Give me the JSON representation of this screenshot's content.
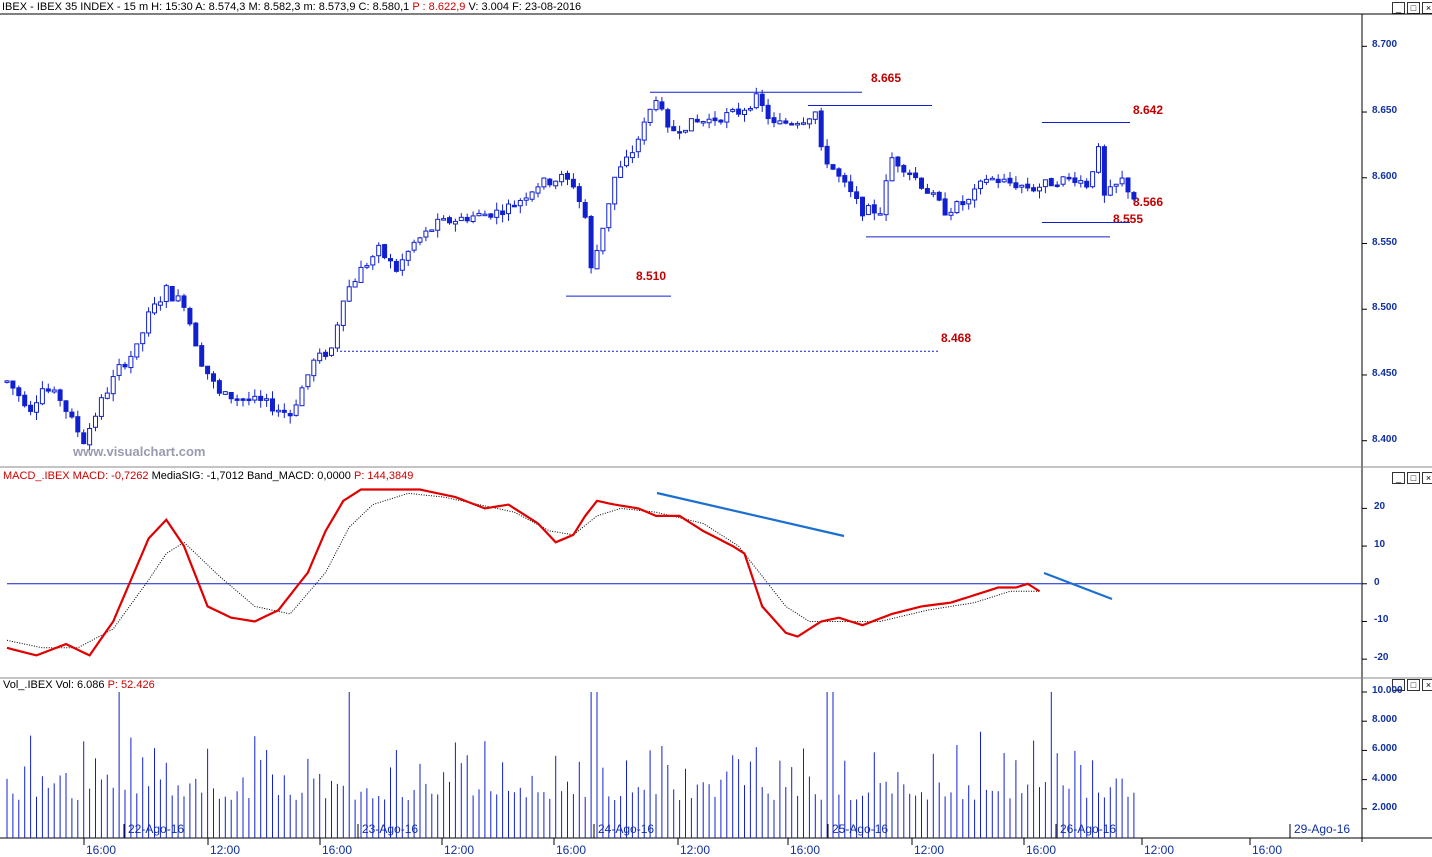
{
  "colors": {
    "price": "#1020d0",
    "macd": "#e00000",
    "signal": "#000000",
    "level": "#c00000",
    "trend": "#1a6fd0",
    "axis": "#1030a0"
  },
  "header": {
    "symbol": "IBEX - IBEX 35 INDEX - 15 m",
    "H": "H: 15:30",
    "A": "A: 8.574,3",
    "M": "M: 8.582,3",
    "m": "m: 8.573,9",
    "C": "C: 8.580,1",
    "P": "P : 8.622,9",
    "V": "V: 3.004",
    "F": "F: 23-08-2016"
  },
  "watermark": "www.visualchart.com",
  "macd_header": {
    "name": "MACD_.IBEX MACD: -0,7262",
    "mediasig": "MediaSIG: -1,7012",
    "band": "Band_MACD: 0,0000",
    "p": "P: 144,3849"
  },
  "vol_header": {
    "name": "Vol_.IBEX Vol: 6.086",
    "p": "P: 52.426"
  },
  "levels": {
    "l8665": "8.665",
    "l8642": "8.642",
    "l8566": "8.566",
    "l8555": "8.555",
    "l8510": "8.510",
    "l8468": "8.468"
  },
  "buttons": {
    "minimize": "_",
    "maximize": "□",
    "close": "×"
  },
  "chart_data": {
    "type": "candlestick",
    "price_yticks": [
      "8.700",
      "8.650",
      "8.600",
      "8.550",
      "8.500",
      "8.450",
      "8.400"
    ],
    "macd_yticks": [
      "20",
      "10",
      "0",
      "-10",
      "-20"
    ],
    "vol_yticks": [
      "10.000",
      "8.000",
      "6.000",
      "4.000",
      "2.000"
    ],
    "time_ticks": [
      "16:00",
      "12:00",
      "16:00",
      "12:00",
      "16:00",
      "12:00",
      "16:00",
      "12:00",
      "16:00",
      "12:00",
      "16:00"
    ],
    "date_ticks": [
      "22-Ago-16",
      "23-Ago-16",
      "24-Ago-16",
      "25-Ago-16",
      "26-Ago-16",
      "29-Ago-16"
    ],
    "price_range": [
      8.38,
      8.72
    ],
    "price_anchors": [
      [
        0,
        8.445
      ],
      [
        4,
        8.425
      ],
      [
        6,
        8.44
      ],
      [
        9,
        8.432
      ],
      [
        11,
        8.415
      ],
      [
        13,
        8.4
      ],
      [
        16,
        8.43
      ],
      [
        19,
        8.455
      ],
      [
        22,
        8.47
      ],
      [
        24,
        8.495
      ],
      [
        27,
        8.515
      ],
      [
        28,
        8.51
      ],
      [
        30,
        8.505
      ],
      [
        33,
        8.46
      ],
      [
        36,
        8.435
      ],
      [
        40,
        8.432
      ],
      [
        44,
        8.428
      ],
      [
        48,
        8.42
      ],
      [
        52,
        8.46
      ],
      [
        55,
        8.47
      ],
      [
        57,
        8.51
      ],
      [
        60,
        8.53
      ],
      [
        63,
        8.545
      ],
      [
        66,
        8.53
      ],
      [
        69,
        8.55
      ],
      [
        73,
        8.565
      ],
      [
        78,
        8.57
      ],
      [
        83,
        8.574
      ],
      [
        86,
        8.58
      ],
      [
        90,
        8.595
      ],
      [
        94,
        8.6
      ],
      [
        96,
        8.595
      ],
      [
        98,
        8.57
      ],
      [
        99,
        8.53
      ],
      [
        100,
        8.545
      ],
      [
        103,
        8.6
      ],
      [
        106,
        8.62
      ],
      [
        108,
        8.64
      ],
      [
        110,
        8.662
      ],
      [
        112,
        8.635
      ],
      [
        115,
        8.64
      ],
      [
        120,
        8.645
      ],
      [
        124,
        8.65
      ],
      [
        127,
        8.66
      ],
      [
        130,
        8.64
      ],
      [
        135,
        8.645
      ],
      [
        137,
        8.65
      ],
      [
        138,
        8.62
      ],
      [
        141,
        8.6
      ],
      [
        145,
        8.575
      ],
      [
        148,
        8.575
      ],
      [
        150,
        8.615
      ],
      [
        153,
        8.605
      ],
      [
        156,
        8.59
      ],
      [
        159,
        8.575
      ],
      [
        163,
        8.582
      ],
      [
        166,
        8.6
      ],
      [
        170,
        8.596
      ],
      [
        174,
        8.592
      ],
      [
        178,
        8.598
      ],
      [
        181,
        8.6
      ],
      [
        183,
        8.595
      ],
      [
        185,
        8.62
      ],
      [
        186,
        8.585
      ],
      [
        189,
        8.598
      ],
      [
        191,
        8.585
      ]
    ],
    "macd_anchors": [
      [
        0,
        -17
      ],
      [
        5,
        -19
      ],
      [
        10,
        -16
      ],
      [
        14,
        -19
      ],
      [
        18,
        -10
      ],
      [
        21,
        1
      ],
      [
        24,
        12
      ],
      [
        27,
        17
      ],
      [
        30,
        10
      ],
      [
        34,
        -6
      ],
      [
        38,
        -9
      ],
      [
        42,
        -10
      ],
      [
        46,
        -7
      ],
      [
        49,
        -1
      ],
      [
        51,
        3
      ],
      [
        54,
        14
      ],
      [
        57,
        22
      ],
      [
        60,
        25
      ],
      [
        66,
        25
      ],
      [
        70,
        25
      ],
      [
        76,
        23
      ],
      [
        81,
        20
      ],
      [
        85,
        21
      ],
      [
        90,
        16
      ],
      [
        93,
        11
      ],
      [
        96,
        13
      ],
      [
        98,
        18
      ],
      [
        100,
        22
      ],
      [
        103,
        21
      ],
      [
        107,
        20
      ],
      [
        110,
        18
      ],
      [
        114,
        18
      ],
      [
        118,
        14
      ],
      [
        123,
        10
      ],
      [
        125,
        8
      ],
      [
        128,
        -6
      ],
      [
        132,
        -13
      ],
      [
        134,
        -14
      ],
      [
        138,
        -10
      ],
      [
        141,
        -9
      ],
      [
        145,
        -11
      ],
      [
        150,
        -8
      ],
      [
        155,
        -6
      ],
      [
        160,
        -5
      ],
      [
        164,
        -3
      ],
      [
        168,
        -1
      ],
      [
        171,
        -1
      ],
      [
        173,
        0
      ],
      [
        175,
        -2
      ]
    ],
    "signal_anchors": [
      [
        0,
        -15
      ],
      [
        6,
        -17
      ],
      [
        12,
        -17
      ],
      [
        18,
        -12
      ],
      [
        24,
        1
      ],
      [
        27,
        8
      ],
      [
        30,
        11
      ],
      [
        36,
        2
      ],
      [
        42,
        -6
      ],
      [
        48,
        -8
      ],
      [
        54,
        3
      ],
      [
        58,
        15
      ],
      [
        62,
        21
      ],
      [
        68,
        24
      ],
      [
        74,
        23
      ],
      [
        80,
        21
      ],
      [
        86,
        19
      ],
      [
        92,
        14
      ],
      [
        96,
        13
      ],
      [
        100,
        18
      ],
      [
        104,
        20
      ],
      [
        110,
        19
      ],
      [
        118,
        16
      ],
      [
        124,
        10
      ],
      [
        128,
        2
      ],
      [
        132,
        -6
      ],
      [
        136,
        -10
      ],
      [
        142,
        -10
      ],
      [
        148,
        -10
      ],
      [
        156,
        -7
      ],
      [
        164,
        -5
      ],
      [
        170,
        -2
      ],
      [
        175,
        -2
      ]
    ],
    "vol_range": [
      0,
      10000
    ],
    "vol_base": 2600
  }
}
